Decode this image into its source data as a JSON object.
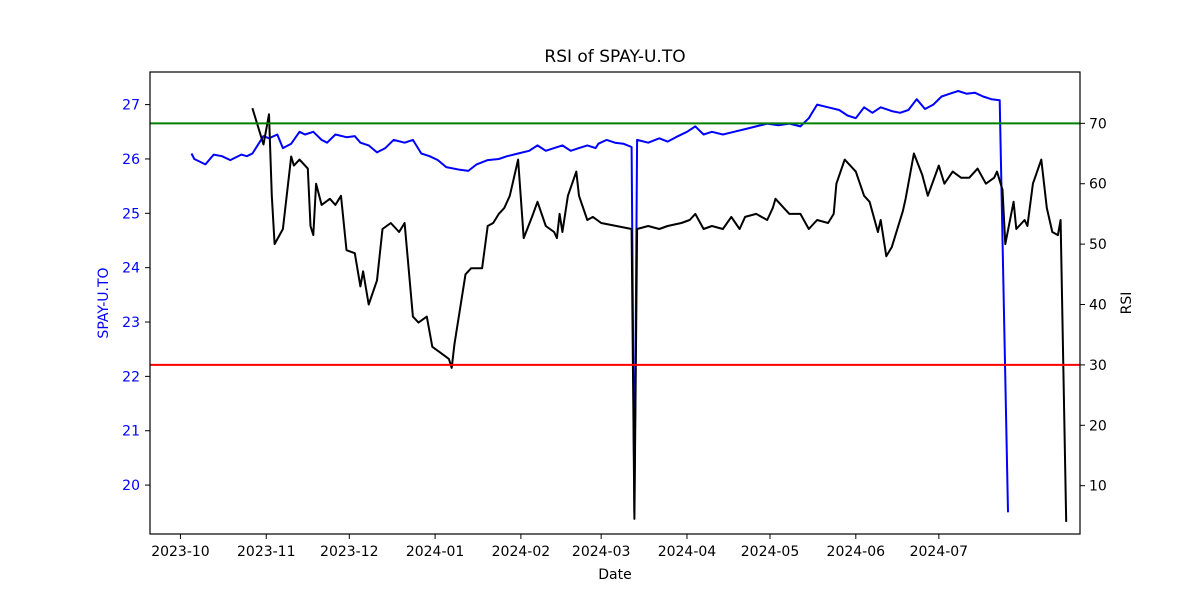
{
  "chart_data": {
    "type": "line",
    "title": "RSI of SPAY-U.TO",
    "xlabel": "Date",
    "ylabel_left": "SPAY-U.TO",
    "ylabel_right": "RSI",
    "x_ticks": [
      "2023-10",
      "2023-11",
      "2023-12",
      "2024-01",
      "2024-02",
      "2024-03",
      "2024-04",
      "2024-05",
      "2024-06",
      "2024-07"
    ],
    "y_left_ticks": [
      "20",
      "21",
      "22",
      "23",
      "24",
      "25",
      "26",
      "27"
    ],
    "y_right_ticks": [
      "10",
      "20",
      "30",
      "40",
      "50",
      "60",
      "70"
    ],
    "y_left_lim": [
      19.1,
      27.6
    ],
    "y_right_lim": [
      2,
      78.5
    ],
    "grid": false,
    "colors": {
      "price": "#0000ff",
      "rsi": "#000000",
      "overbought": "#008000",
      "oversold": "#ff0000"
    },
    "reference_lines": [
      {
        "axis": "right",
        "value": 70,
        "color": "#008000"
      },
      {
        "axis": "right",
        "value": 30,
        "color": "#ff0000"
      }
    ],
    "series": [
      {
        "axis": "left",
        "color": "#0000ff",
        "points": [
          [
            "2023-10-05",
            26.1
          ],
          [
            "2023-10-06",
            26.0
          ],
          [
            "2023-10-10",
            25.9
          ],
          [
            "2023-10-13",
            26.08
          ],
          [
            "2023-10-16",
            26.05
          ],
          [
            "2023-10-19",
            25.98
          ],
          [
            "2023-10-23",
            26.08
          ],
          [
            "2023-10-25",
            26.05
          ],
          [
            "2023-10-27",
            26.1
          ],
          [
            "2023-10-31",
            26.42
          ],
          [
            "2023-11-02",
            26.38
          ],
          [
            "2023-11-05",
            26.45
          ],
          [
            "2023-11-07",
            26.2
          ],
          [
            "2023-11-10",
            26.28
          ],
          [
            "2023-11-13",
            26.5
          ],
          [
            "2023-11-15",
            26.45
          ],
          [
            "2023-11-18",
            26.5
          ],
          [
            "2023-11-21",
            26.35
          ],
          [
            "2023-11-23",
            26.3
          ],
          [
            "2023-11-26",
            26.45
          ],
          [
            "2023-11-30",
            26.4
          ],
          [
            "2023-12-03",
            26.42
          ],
          [
            "2023-12-05",
            26.3
          ],
          [
            "2023-12-08",
            26.25
          ],
          [
            "2023-12-11",
            26.12
          ],
          [
            "2023-12-14",
            26.2
          ],
          [
            "2023-12-17",
            26.35
          ],
          [
            "2023-12-21",
            26.3
          ],
          [
            "2023-12-24",
            26.35
          ],
          [
            "2023-12-27",
            26.1
          ],
          [
            "2023-12-30",
            26.05
          ],
          [
            "2024-01-02",
            25.98
          ],
          [
            "2024-01-05",
            25.85
          ],
          [
            "2024-01-10",
            25.8
          ],
          [
            "2024-01-13",
            25.78
          ],
          [
            "2024-01-16",
            25.9
          ],
          [
            "2024-01-20",
            25.98
          ],
          [
            "2024-01-24",
            26.0
          ],
          [
            "2024-01-27",
            26.05
          ],
          [
            "2024-01-31",
            26.1
          ],
          [
            "2024-02-04",
            26.15
          ],
          [
            "2024-02-07",
            26.25
          ],
          [
            "2024-02-10",
            26.15
          ],
          [
            "2024-02-13",
            26.2
          ],
          [
            "2024-02-16",
            26.25
          ],
          [
            "2024-02-19",
            26.15
          ],
          [
            "2024-02-22",
            26.2
          ],
          [
            "2024-02-25",
            26.25
          ],
          [
            "2024-02-28",
            26.2
          ],
          [
            "2024-02-29",
            26.28
          ],
          [
            "2024-03-03",
            26.35
          ],
          [
            "2024-03-06",
            26.3
          ],
          [
            "2024-03-09",
            26.28
          ],
          [
            "2024-03-12",
            26.22
          ],
          [
            "2024-03-13",
            19.5
          ],
          [
            "2024-03-14",
            26.35
          ],
          [
            "2024-03-18",
            26.3
          ],
          [
            "2024-03-22",
            26.38
          ],
          [
            "2024-03-25",
            26.32
          ],
          [
            "2024-03-28",
            26.4
          ],
          [
            "2024-04-01",
            26.5
          ],
          [
            "2024-04-04",
            26.6
          ],
          [
            "2024-04-07",
            26.45
          ],
          [
            "2024-04-10",
            26.5
          ],
          [
            "2024-04-14",
            26.45
          ],
          [
            "2024-04-18",
            26.5
          ],
          [
            "2024-04-22",
            26.55
          ],
          [
            "2024-04-26",
            26.6
          ],
          [
            "2024-04-30",
            26.65
          ],
          [
            "2024-05-04",
            26.62
          ],
          [
            "2024-05-08",
            26.65
          ],
          [
            "2024-05-12",
            26.6
          ],
          [
            "2024-05-15",
            26.75
          ],
          [
            "2024-05-18",
            27.0
          ],
          [
            "2024-05-22",
            26.95
          ],
          [
            "2024-05-26",
            26.9
          ],
          [
            "2024-05-29",
            26.8
          ],
          [
            "2024-06-01",
            26.75
          ],
          [
            "2024-06-04",
            26.95
          ],
          [
            "2024-06-07",
            26.85
          ],
          [
            "2024-06-10",
            26.95
          ],
          [
            "2024-06-14",
            26.88
          ],
          [
            "2024-06-17",
            26.85
          ],
          [
            "2024-06-20",
            26.9
          ],
          [
            "2024-06-23",
            27.1
          ],
          [
            "2024-06-26",
            26.92
          ],
          [
            "2024-06-29",
            27.0
          ],
          [
            "2024-07-02",
            27.15
          ],
          [
            "2024-07-05",
            27.2
          ],
          [
            "2024-07-08",
            27.25
          ],
          [
            "2024-07-11",
            27.2
          ],
          [
            "2024-07-14",
            27.22
          ],
          [
            "2024-07-17",
            27.15
          ],
          [
            "2024-07-20",
            27.1
          ],
          [
            "2024-07-23",
            27.08
          ],
          [
            "2024-07-26",
            19.5
          ]
        ]
      },
      {
        "axis": "right",
        "color": "#000000",
        "points": [
          [
            "2023-10-27",
            72.5
          ],
          [
            "2023-10-31",
            66.5
          ],
          [
            "2023-11-02",
            71.5
          ],
          [
            "2023-11-03",
            58
          ],
          [
            "2023-11-04",
            50
          ],
          [
            "2023-11-07",
            52.5
          ],
          [
            "2023-11-10",
            64.5
          ],
          [
            "2023-11-11",
            63
          ],
          [
            "2023-11-13",
            64
          ],
          [
            "2023-11-16",
            62.5
          ],
          [
            "2023-11-17",
            53
          ],
          [
            "2023-11-18",
            51.5
          ],
          [
            "2023-11-19",
            60
          ],
          [
            "2023-11-21",
            56.5
          ],
          [
            "2023-11-24",
            57.5
          ],
          [
            "2023-11-26",
            56.5
          ],
          [
            "2023-11-28",
            58
          ],
          [
            "2023-11-30",
            49
          ],
          [
            "2023-12-03",
            48.5
          ],
          [
            "2023-12-05",
            43
          ],
          [
            "2023-12-06",
            45.5
          ],
          [
            "2023-12-08",
            40
          ],
          [
            "2023-12-11",
            44
          ],
          [
            "2023-12-13",
            52.5
          ],
          [
            "2023-12-16",
            53.5
          ],
          [
            "2023-12-19",
            52
          ],
          [
            "2023-12-21",
            53.5
          ],
          [
            "2023-12-24",
            38
          ],
          [
            "2023-12-26",
            37
          ],
          [
            "2023-12-29",
            38
          ],
          [
            "2023-12-31",
            33
          ],
          [
            "2024-01-03",
            32
          ],
          [
            "2024-01-06",
            31
          ],
          [
            "2024-01-07",
            29.5
          ],
          [
            "2024-01-08",
            33.5
          ],
          [
            "2024-01-12",
            45
          ],
          [
            "2024-01-14",
            46
          ],
          [
            "2024-01-18",
            46
          ],
          [
            "2024-01-20",
            53
          ],
          [
            "2024-01-22",
            53.5
          ],
          [
            "2024-01-24",
            55
          ],
          [
            "2024-01-26",
            56
          ],
          [
            "2024-01-28",
            58
          ],
          [
            "2024-01-31",
            64
          ],
          [
            "2024-02-02",
            51
          ],
          [
            "2024-02-05",
            54.5
          ],
          [
            "2024-02-07",
            57
          ],
          [
            "2024-02-10",
            53
          ],
          [
            "2024-02-13",
            52
          ],
          [
            "2024-02-14",
            51
          ],
          [
            "2024-02-15",
            55
          ],
          [
            "2024-02-16",
            52
          ],
          [
            "2024-02-18",
            58
          ],
          [
            "2024-02-21",
            62
          ],
          [
            "2024-02-22",
            58
          ],
          [
            "2024-02-25",
            54
          ],
          [
            "2024-02-27",
            54.5
          ],
          [
            "2024-03-01",
            53.5
          ],
          [
            "2024-03-12",
            52.5
          ],
          [
            "2024-03-13",
            4.5
          ],
          [
            "2024-03-14",
            52.5
          ],
          [
            "2024-03-18",
            53
          ],
          [
            "2024-03-22",
            52.5
          ],
          [
            "2024-03-25",
            53
          ],
          [
            "2024-03-30",
            53.5
          ],
          [
            "2024-04-02",
            54
          ],
          [
            "2024-04-04",
            55
          ],
          [
            "2024-04-07",
            52.5
          ],
          [
            "2024-04-10",
            53
          ],
          [
            "2024-04-14",
            52.5
          ],
          [
            "2024-04-17",
            54.5
          ],
          [
            "2024-04-20",
            52.5
          ],
          [
            "2024-04-22",
            54.5
          ],
          [
            "2024-04-26",
            55
          ],
          [
            "2024-04-30",
            54
          ],
          [
            "2024-05-02",
            56
          ],
          [
            "2024-05-03",
            57.5
          ],
          [
            "2024-05-06",
            56
          ],
          [
            "2024-05-08",
            55
          ],
          [
            "2024-05-12",
            55
          ],
          [
            "2024-05-15",
            52.5
          ],
          [
            "2024-05-18",
            54
          ],
          [
            "2024-05-22",
            53.5
          ],
          [
            "2024-05-24",
            55
          ],
          [
            "2024-05-25",
            60
          ],
          [
            "2024-05-28",
            64
          ],
          [
            "2024-06-01",
            62
          ],
          [
            "2024-06-04",
            58
          ],
          [
            "2024-06-06",
            57
          ],
          [
            "2024-06-09",
            52
          ],
          [
            "2024-06-10",
            54
          ],
          [
            "2024-06-12",
            48
          ],
          [
            "2024-06-14",
            49.5
          ],
          [
            "2024-06-18",
            55.5
          ],
          [
            "2024-06-19",
            57.5
          ],
          [
            "2024-06-22",
            65
          ],
          [
            "2024-06-25",
            61.5
          ],
          [
            "2024-06-27",
            58
          ],
          [
            "2024-07-01",
            63
          ],
          [
            "2024-07-03",
            60
          ],
          [
            "2024-07-06",
            62
          ],
          [
            "2024-07-09",
            61
          ],
          [
            "2024-07-12",
            61
          ],
          [
            "2024-07-15",
            62.5
          ],
          [
            "2024-07-18",
            60
          ],
          [
            "2024-07-21",
            61
          ],
          [
            "2024-07-22",
            62
          ],
          [
            "2024-07-24",
            59
          ],
          [
            "2024-07-25",
            50
          ],
          [
            "2024-07-28",
            57
          ],
          [
            "2024-07-29",
            52.5
          ],
          [
            "2024-08-01",
            54
          ],
          [
            "2024-08-02",
            53
          ],
          [
            "2024-08-04",
            60
          ],
          [
            "2024-08-07",
            64
          ],
          [
            "2024-08-09",
            56
          ],
          [
            "2024-08-11",
            52
          ],
          [
            "2024-08-13",
            51.5
          ],
          [
            "2024-08-14",
            54
          ],
          [
            "2024-08-16",
            4
          ]
        ]
      }
    ]
  }
}
